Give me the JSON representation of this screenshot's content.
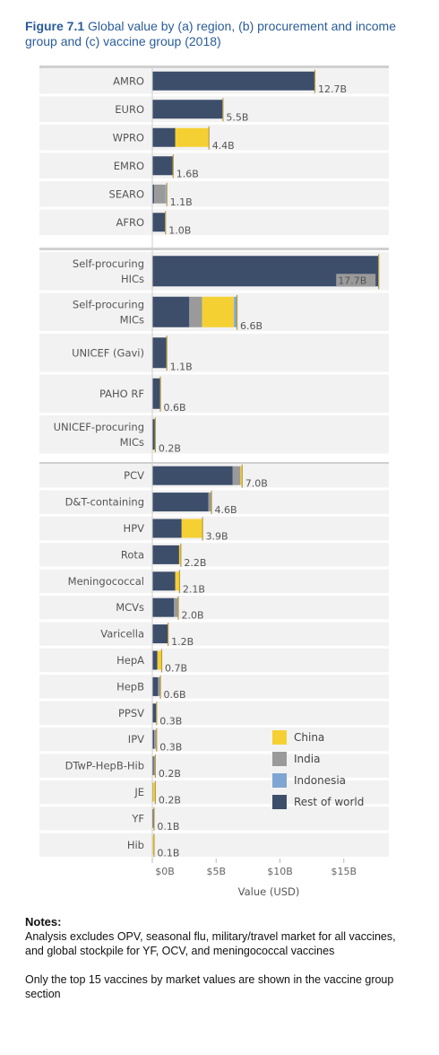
{
  "title": {
    "figure_num": "Figure 7.1",
    "text": "Global value by (a) region, (b) procurement and income group and (c) vaccine group (2018)"
  },
  "chart_data": {
    "type": "bar",
    "orientation": "horizontal",
    "stacked": true,
    "series_names": [
      "Rest of world",
      "India",
      "China",
      "Indonesia"
    ],
    "colors": {
      "Rest of world": "#3d4e6b",
      "India": "#9a9a9a",
      "China": "#f5d033",
      "Indonesia": "#7fa6d3"
    },
    "xlim": [
      0,
      18.5
    ],
    "x_ticks": [
      {
        "value": 0,
        "label": "$0B"
      },
      {
        "value": 5,
        "label": "$5B"
      },
      {
        "value": 10,
        "label": "$10B"
      },
      {
        "value": 15,
        "label": "$15B"
      }
    ],
    "xlabel": "Value (USD)",
    "legend": {
      "position": "bottom-right",
      "items": [
        "China",
        "India",
        "Indonesia",
        "Rest of world"
      ]
    },
    "panels": [
      {
        "id": "region",
        "rows": [
          {
            "category": [
              "AMRO"
            ],
            "label": "12.7B",
            "segments": {
              "Rest of world": 12.7
            }
          },
          {
            "category": [
              "EURO"
            ],
            "label": "5.5B",
            "segments": {
              "Rest of world": 5.5
            }
          },
          {
            "category": [
              "WPRO"
            ],
            "label": "4.4B",
            "segments": {
              "Rest of world": 1.8,
              "China": 2.6
            }
          },
          {
            "category": [
              "EMRO"
            ],
            "label": "1.6B",
            "segments": {
              "Rest of world": 1.6
            }
          },
          {
            "category": [
              "SEARO"
            ],
            "label": "1.1B",
            "segments": {
              "Rest of world": 0.15,
              "India": 0.85,
              "Indonesia": 0.1
            }
          },
          {
            "category": [
              "AFRO"
            ],
            "label": "1.0B",
            "segments": {
              "Rest of world": 1.0
            }
          }
        ]
      },
      {
        "id": "procurement",
        "rows": [
          {
            "category": [
              "Self-procuring",
              "HICs"
            ],
            "label": "17.7B",
            "segments": {
              "Rest of world": 17.7
            }
          },
          {
            "category": [
              "Self-procuring",
              "MICs"
            ],
            "label": "6.6B",
            "segments": {
              "Rest of world": 2.9,
              "India": 1.0,
              "China": 2.5,
              "Indonesia": 0.2
            }
          },
          {
            "category": [
              "UNICEF (Gavi)"
            ],
            "label": "1.1B",
            "segments": {
              "Rest of world": 1.1
            }
          },
          {
            "category": [
              "PAHO RF"
            ],
            "label": "0.6B",
            "segments": {
              "Rest of world": 0.6
            }
          },
          {
            "category": [
              "UNICEF-procuring",
              "MICs"
            ],
            "label": "0.2B",
            "segments": {
              "Rest of world": 0.2
            }
          }
        ]
      },
      {
        "id": "vaccine",
        "rows": [
          {
            "category": [
              "PCV"
            ],
            "label": "7.0B",
            "segments": {
              "Rest of world": 6.3,
              "India": 0.6,
              "China": 0.1
            }
          },
          {
            "category": [
              "D&T-containing"
            ],
            "label": "4.6B",
            "segments": {
              "Rest of world": 4.4,
              "India": 0.2
            }
          },
          {
            "category": [
              "HPV"
            ],
            "label": "3.9B",
            "segments": {
              "Rest of world": 2.3,
              "China": 1.6
            }
          },
          {
            "category": [
              "Rota"
            ],
            "label": "2.2B",
            "segments": {
              "Rest of world": 2.1,
              "China": 0.1
            }
          },
          {
            "category": [
              "Meningococcal"
            ],
            "label": "2.1B",
            "segments": {
              "Rest of world": 1.8,
              "China": 0.3
            }
          },
          {
            "category": [
              "MCVs"
            ],
            "label": "2.0B",
            "segments": {
              "Rest of world": 1.7,
              "India": 0.3
            }
          },
          {
            "category": [
              "Varicella"
            ],
            "label": "1.2B",
            "segments": {
              "Rest of world": 1.2
            }
          },
          {
            "category": [
              "HepA"
            ],
            "label": "0.7B",
            "segments": {
              "Rest of world": 0.4,
              "China": 0.3
            }
          },
          {
            "category": [
              "HepB"
            ],
            "label": "0.6B",
            "segments": {
              "Rest of world": 0.45,
              "India": 0.15
            }
          },
          {
            "category": [
              "PPSV"
            ],
            "label": "0.3B",
            "segments": {
              "Rest of world": 0.3
            }
          },
          {
            "category": [
              "IPV"
            ],
            "label": "0.3B",
            "segments": {
              "Rest of world": 0.15,
              "India": 0.15
            }
          },
          {
            "category": [
              "DTwP-HepB-Hib"
            ],
            "label": "0.2B",
            "segments": {
              "Rest of world": 0.12,
              "India": 0.08
            }
          },
          {
            "category": [
              "JE"
            ],
            "label": "0.2B",
            "segments": {
              "Rest of world": 0.05,
              "China": 0.15
            }
          },
          {
            "category": [
              "YF"
            ],
            "label": "0.1B",
            "segments": {
              "Rest of world": 0.1
            }
          },
          {
            "category": [
              "Hib"
            ],
            "label": "0.1B",
            "segments": {
              "China": 0.1
            }
          }
        ]
      }
    ]
  },
  "notes": {
    "heading": "Notes:",
    "line1": "Analysis excludes OPV, seasonal flu, military/travel market for all vaccines, and global stockpile for YF, OCV, and meningococcal vaccines",
    "line2": "Only the top 15 vaccines by market values are shown in the vaccine group section"
  }
}
